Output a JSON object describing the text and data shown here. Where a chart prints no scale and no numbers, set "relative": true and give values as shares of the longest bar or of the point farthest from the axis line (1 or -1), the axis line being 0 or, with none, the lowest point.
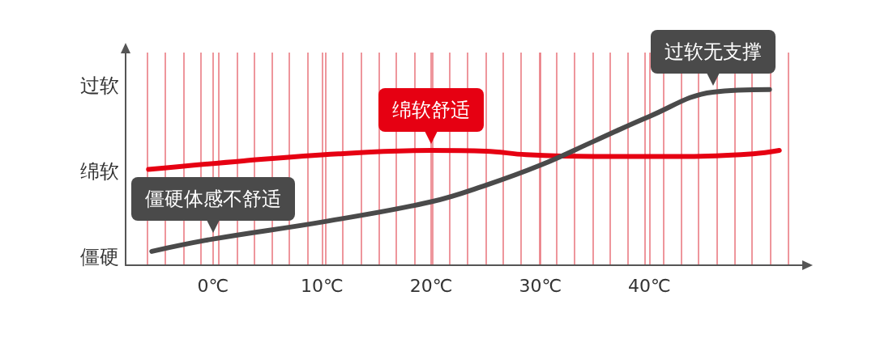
{
  "chart_data": {
    "type": "line",
    "relative": true,
    "xlim": [
      -8,
      54
    ],
    "xticks": [
      {
        "value": 0,
        "label": "0℃"
      },
      {
        "value": 10,
        "label": "10℃"
      },
      {
        "value": 20,
        "label": "20℃"
      },
      {
        "value": 30,
        "label": "30℃"
      },
      {
        "value": 40,
        "label": "40℃"
      },
      {
        "value": -6.0,
        "label": null
      },
      {
        "value": -4.4,
        "label": null
      },
      {
        "value": -2.7,
        "label": null
      },
      {
        "value": -1.1,
        "label": null
      },
      {
        "value": 0.5,
        "label": null
      },
      {
        "value": 2.2,
        "label": null
      },
      {
        "value": 3.8,
        "label": null
      },
      {
        "value": 5.4,
        "label": null
      },
      {
        "value": 7.0,
        "label": null
      },
      {
        "value": 8.7,
        "label": null
      },
      {
        "value": 10.3,
        "label": null
      },
      {
        "value": 11.9,
        "label": null
      },
      {
        "value": 13.6,
        "label": null
      },
      {
        "value": 15.2,
        "label": null
      },
      {
        "value": 16.8,
        "label": null
      },
      {
        "value": 18.5,
        "label": null
      },
      {
        "value": 20.1,
        "label": null
      },
      {
        "value": 21.7,
        "label": null
      },
      {
        "value": 23.3,
        "label": null
      },
      {
        "value": 25.0,
        "label": null
      },
      {
        "value": 26.6,
        "label": null
      },
      {
        "value": 28.2,
        "label": null
      },
      {
        "value": 29.9,
        "label": null
      },
      {
        "value": 31.5,
        "label": null
      },
      {
        "value": 33.1,
        "label": null
      },
      {
        "value": 34.8,
        "label": null
      },
      {
        "value": 36.4,
        "label": null
      },
      {
        "value": 38.0,
        "label": null
      },
      {
        "value": 39.6,
        "label": null
      },
      {
        "value": 41.3,
        "label": null
      },
      {
        "value": 42.9,
        "label": null
      },
      {
        "value": 44.5,
        "label": null
      },
      {
        "value": 46.2,
        "label": null
      },
      {
        "value": 47.8,
        "label": null
      },
      {
        "value": 49.4,
        "label": null
      },
      {
        "value": 51.1,
        "label": null
      },
      {
        "value": 52.7,
        "label": null
      }
    ],
    "grid": "x",
    "line_style": "solid",
    "marker": "none",
    "series": [
      {
        "color": "#e60012",
        "x": [
          -5.9,
          2.8,
          11.5,
          20,
          25,
          28.7,
          35,
          43.5,
          49.5,
          51.9
        ],
        "values": [
          0.545,
          0.594,
          0.634,
          0.653,
          0.649,
          0.629,
          0.619,
          0.619,
          0.634,
          0.653
        ]
      },
      {
        "color": "#4a4a4a",
        "x": [
          -5.6,
          0,
          10.2,
          20,
          25,
          30,
          35,
          40,
          45.8,
          51
        ],
        "values": [
          0.079,
          0.149,
          0.248,
          0.361,
          0.455,
          0.569,
          0.708,
          0.847,
          0.985,
          1.0
        ]
      }
    ],
    "annotations": [
      "过软",
      "绵软",
      "僵硬",
      {
        "text": "过软无支撑",
        "x": 45.8,
        "y": 0.985
      },
      {
        "text": "绵软舒适",
        "x": 20,
        "y": 0.653
      },
      {
        "text": "僵硬体感不舒适",
        "x": 0,
        "y": 0.149
      }
    ]
  }
}
